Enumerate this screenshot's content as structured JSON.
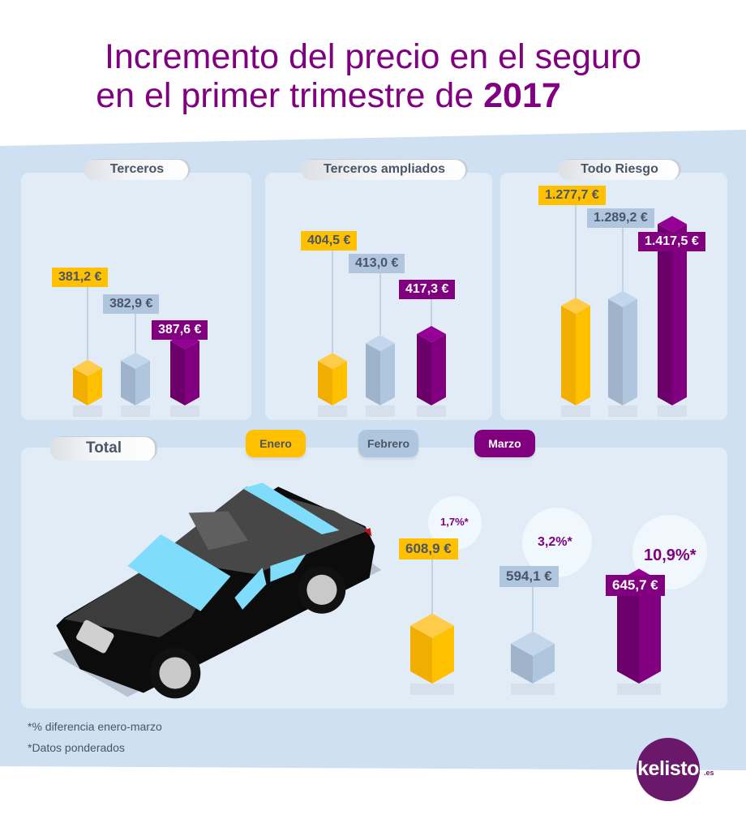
{
  "title": {
    "line1": "Incremento del precio en el seguro",
    "line2_prefix": "en el primer trimestre de ",
    "line2_year": "2017"
  },
  "colors": {
    "enero": "#ffc000",
    "febrero": "#b0c6df",
    "marzo": "#800080",
    "title": "#800080",
    "background_band": "#cfe0f2",
    "panel": "#e2ecf7"
  },
  "legend": {
    "items": [
      {
        "label": "Enero",
        "color": "#ffc000"
      },
      {
        "label": "Febrero",
        "color": "#b0c6df"
      },
      {
        "label": "Marzo",
        "color": "#800080"
      }
    ]
  },
  "chart_data": [
    {
      "type": "bar",
      "title": "Terceros",
      "categories": [
        "Enero",
        "Febrero",
        "Marzo"
      ],
      "values": [
        381.2,
        382.9,
        387.6
      ],
      "value_labels": [
        "381,2 €",
        "382,9 €",
        "387,6 €"
      ],
      "unit": "€"
    },
    {
      "type": "bar",
      "title": "Terceros ampliados",
      "categories": [
        "Enero",
        "Febrero",
        "Marzo"
      ],
      "values": [
        404.5,
        413.0,
        417.3
      ],
      "value_labels": [
        "404,5 €",
        "413,0 €",
        "417,3 €"
      ],
      "unit": "€"
    },
    {
      "type": "bar",
      "title": "Todo Riesgo",
      "categories": [
        "Enero",
        "Febrero",
        "Marzo"
      ],
      "values": [
        1277.7,
        1289.2,
        1417.5
      ],
      "value_labels": [
        "1.277,7 €",
        "1.289,2 €",
        "1.417,5 €"
      ],
      "unit": "€"
    },
    {
      "type": "bar",
      "title": "Total",
      "categories": [
        "Enero",
        "Febrero",
        "Marzo"
      ],
      "values": [
        608.9,
        594.1,
        645.7
      ],
      "value_labels": [
        "608,9 €",
        "594,1 €",
        "645,7 €"
      ],
      "annotations": [
        "1,7%*",
        "3,2%*",
        "10,9%*"
      ],
      "unit": "€"
    }
  ],
  "footnotes": [
    "*% diferencia enero-marzo",
    "*Datos ponderados"
  ],
  "logo": {
    "text": "kelisto",
    "suffix": ".es"
  },
  "illustration": "black-car-icon"
}
